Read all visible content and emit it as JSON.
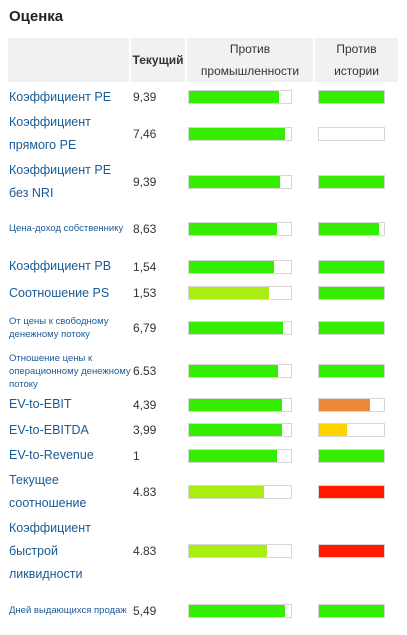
{
  "title": "Оценка",
  "table": {
    "headers": {
      "current": "Текущий",
      "industry": "Против промышленности",
      "history": "Против истории"
    },
    "rows": [
      {
        "name": "Коэффициент PE",
        "current": "9,39",
        "industry": {
          "value": 88,
          "color": "#33ee00"
        },
        "history": {
          "value": 100,
          "color": "#33ee00"
        }
      },
      {
        "name": "Коэффициент прямого PE",
        "current": "7,46",
        "industry": {
          "value": 94,
          "color": "#33ee00"
        },
        "history": {
          "value": 0,
          "color": "#33ee00"
        }
      },
      {
        "name": "Коэффициент PE без NRI",
        "current": "9,39",
        "industry": {
          "value": 89,
          "color": "#33ee00"
        },
        "history": {
          "value": 100,
          "color": "#33ee00"
        }
      },
      {
        "name": "Цена-доход собственнику",
        "current": "8,63",
        "industry": {
          "value": 86,
          "color": "#33ee00"
        },
        "history": {
          "value": 92,
          "color": "#33ee00"
        }
      },
      {
        "name": "Коэффициент PB",
        "current": "1,54",
        "industry": {
          "value": 83,
          "color": "#33ee00"
        },
        "history": {
          "value": 100,
          "color": "#33ee00"
        }
      },
      {
        "name": "Соотношение PS",
        "current": "1,53",
        "industry": {
          "value": 78,
          "color": "#aaee11"
        },
        "history": {
          "value": 100,
          "color": "#33ee00"
        }
      },
      {
        "name": "От цены к свободному денежному потоку",
        "current": "6,79",
        "industry": {
          "value": 92,
          "color": "#33ee00"
        },
        "history": {
          "value": 100,
          "color": "#33ee00"
        }
      },
      {
        "name": "Отношение цены к операционному денежному потоку",
        "current": "6.53",
        "industry": {
          "value": 87,
          "color": "#33ee00"
        },
        "history": {
          "value": 100,
          "color": "#33ee00"
        }
      },
      {
        "name": "EV-to-EBIT",
        "current": "4,39",
        "industry": {
          "value": 91,
          "color": "#33ee00"
        },
        "history": {
          "value": 78,
          "color": "#f0883c"
        }
      },
      {
        "name": "EV-to-EBITDA",
        "current": "3,99",
        "industry": {
          "value": 91,
          "color": "#33ee00"
        },
        "history": {
          "value": 43,
          "color": "#ffd200"
        }
      },
      {
        "name": "EV-to-Revenue",
        "current": "1",
        "industry": {
          "value": 86,
          "color": "#33ee00"
        },
        "history": {
          "value": 100,
          "color": "#33ee00"
        }
      },
      {
        "name": "Текущее соотношение",
        "current": "4.83",
        "industry": {
          "value": 74,
          "color": "#aaee11"
        },
        "history": {
          "value": 100,
          "color": "#ff1a00"
        }
      },
      {
        "name": "Коэффициент быстрой ликвидности",
        "current": "4.83",
        "industry": {
          "value": 76,
          "color": "#aaee11"
        },
        "history": {
          "value": 100,
          "color": "#ff1a00"
        }
      },
      {
        "name": "Дней выдающихся продаж",
        "current": "5,49",
        "industry": {
          "value": 94,
          "color": "#33ee00"
        },
        "history": {
          "value": 100,
          "color": "#33ee00"
        }
      }
    ]
  }
}
